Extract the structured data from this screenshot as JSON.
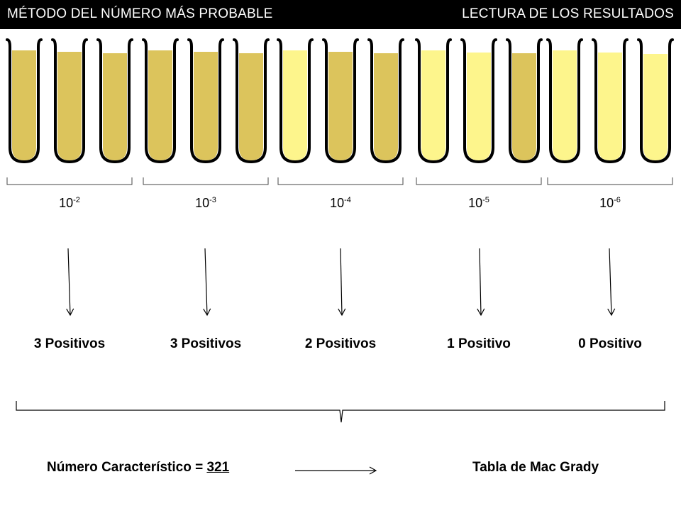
{
  "header": {
    "title_left": "MÉTODO  DEL NÚMERO MÁS PROBABLE",
    "title_right": "LECTURA DE LOS RESULTADOS"
  },
  "colors": {
    "negative_fill": "#dcc45c",
    "positive_fill": "#fdf58c",
    "header_bg": "#000000"
  },
  "dilutions": [
    {
      "base": "10",
      "exponent": "-2",
      "tubes": [
        "negative",
        "negative",
        "negative"
      ],
      "result": "3 Positivos"
    },
    {
      "base": "10",
      "exponent": "-3",
      "tubes": [
        "negative",
        "negative",
        "negative"
      ],
      "result": "3 Positivos"
    },
    {
      "base": "10",
      "exponent": "-4",
      "tubes": [
        "positive",
        "negative",
        "negative"
      ],
      "result": "2 Positivos"
    },
    {
      "base": "10",
      "exponent": "-5",
      "tubes": [
        "positive",
        "positive",
        "negative"
      ],
      "result": "1 Positivo"
    },
    {
      "base": "10",
      "exponent": "-6",
      "tubes": [
        "positive",
        "positive",
        "positive"
      ],
      "result": "0 Positivo"
    }
  ],
  "footer": {
    "numero_label": "Número Característico = ",
    "numero_value": "321",
    "tabla": "Tabla de Mac Grady"
  }
}
